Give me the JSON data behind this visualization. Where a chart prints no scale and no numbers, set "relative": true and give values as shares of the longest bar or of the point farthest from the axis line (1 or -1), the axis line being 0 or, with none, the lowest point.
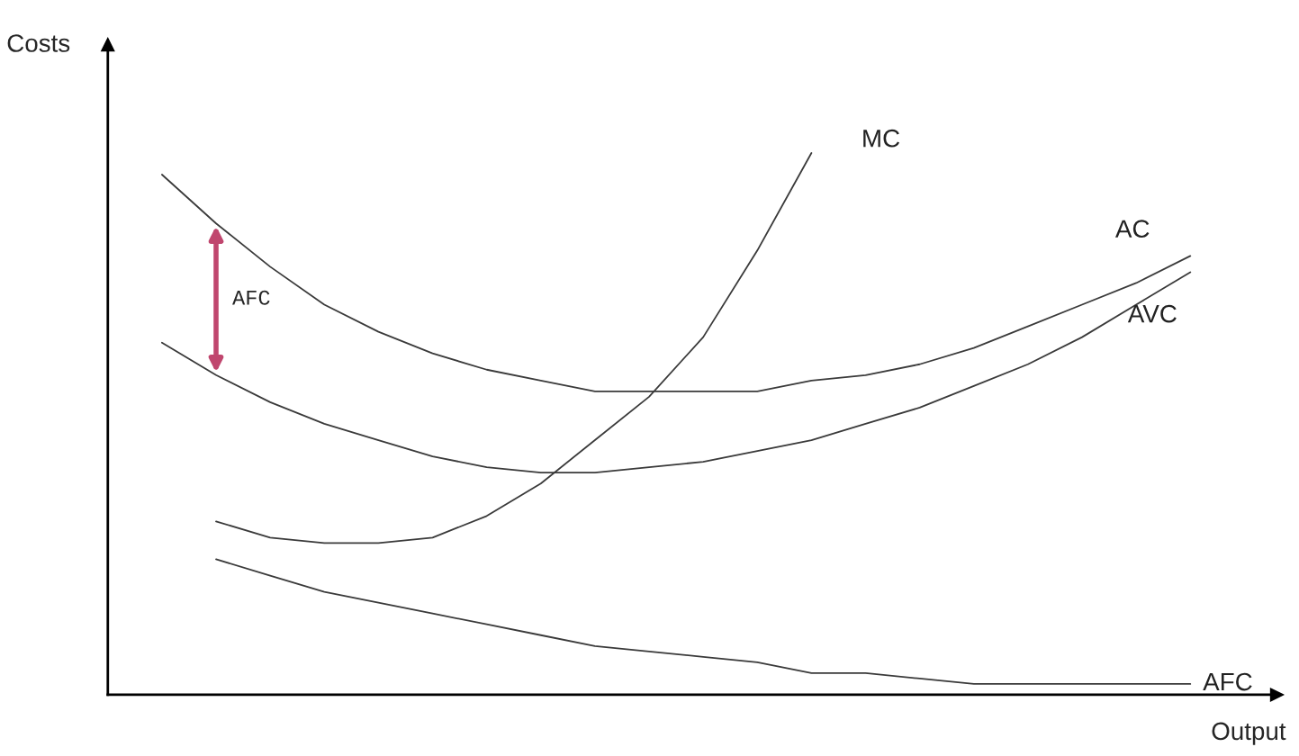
{
  "chart_data": {
    "type": "line",
    "relative": true,
    "xlabel": "Output",
    "ylabel": "Costs",
    "categories": [
      null,
      null,
      null,
      null,
      null,
      null,
      null,
      null,
      null,
      null,
      null,
      null,
      null,
      null,
      null,
      null,
      null,
      null,
      null,
      null
    ],
    "series": [
      {
        "name": "AC",
        "color": "#3a3a3a",
        "values": [
          0.96,
          0.87,
          0.79,
          0.72,
          0.67,
          0.63,
          0.6,
          0.58,
          0.56,
          0.56,
          0.56,
          0.56,
          0.58,
          0.59,
          0.61,
          0.64,
          0.68,
          0.72,
          0.76,
          0.81
        ]
      },
      {
        "name": "AVC",
        "color": "#3a3a3a",
        "values": [
          0.65,
          0.59,
          0.54,
          0.5,
          0.47,
          0.44,
          0.42,
          0.41,
          0.41,
          0.42,
          0.43,
          0.45,
          0.47,
          0.5,
          0.53,
          0.57,
          0.61,
          0.66,
          0.72,
          0.78
        ]
      },
      {
        "name": "MC",
        "color": "#3a3a3a",
        "values": [
          null,
          0.32,
          0.29,
          0.28,
          0.28,
          0.29,
          0.33,
          0.39,
          0.47,
          0.55,
          0.66,
          0.82,
          1.0,
          null,
          null,
          null,
          null,
          null,
          null,
          null
        ]
      },
      {
        "name": "AFC",
        "color": "#3a3a3a",
        "values": [
          null,
          0.25,
          0.22,
          0.19,
          0.17,
          0.15,
          0.13,
          0.11,
          0.09,
          0.08,
          0.07,
          0.06,
          0.04,
          0.04,
          0.03,
          0.02,
          0.02,
          0.02,
          0.02,
          0.02
        ]
      }
    ],
    "annotations": [
      "AFC"
    ],
    "legend": false,
    "marker": "none",
    "line_style": "solid"
  }
}
